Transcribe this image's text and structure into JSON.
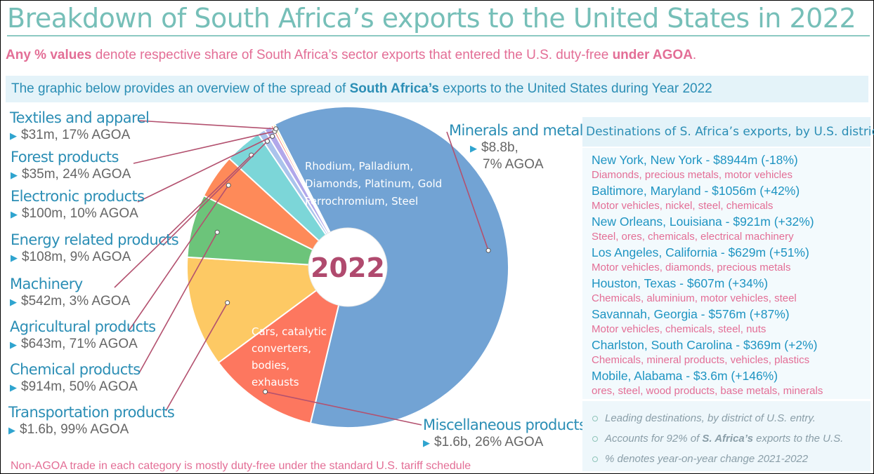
{
  "title": "Breakdown of South Africa’s exports to the United States in 2022",
  "subtitle": {
    "prefix_bold": "Any % values",
    "middle": " denote respective share of South Africa’s sector exports that entered the U.S. duty-free ",
    "suffix_bold": "under AGOA",
    "end": "."
  },
  "overview": {
    "prefix": "The graphic below provides an overview of the spread of ",
    "bold": "South Africa’s",
    "suffix": " exports to the United States during Year 2022"
  },
  "center_label": "2022",
  "slice_notes": {
    "minerals": [
      "Rhodium, Palladium,",
      "Diamonds, Platinum, Gold",
      "Ferrochromium, Steel"
    ],
    "transportation": [
      "Cars, catalytic",
      "converters,",
      "bodies,",
      "exhausts"
    ]
  },
  "footnote": "Non-AGOA trade in each category is mostly duty-free under the standard U.S. tariff schedule",
  "chart_data": {
    "type": "pie",
    "title": "Breakdown of South Africa’s exports to the United States in 2022",
    "center_text": "2022",
    "units": "US$ millions",
    "slices": [
      {
        "name": "Minerals and metals",
        "value": 8800,
        "value_label": "$8.8b,",
        "agoa_label": "7% AGOA",
        "agoa_pct": 7,
        "color": "#72a3d4"
      },
      {
        "name": "Miscellaneous products",
        "value": 1600,
        "value_label": "$1.6b, 26% AGOA",
        "agoa_pct": 26,
        "color": "#fd775f"
      },
      {
        "name": "Transportation products",
        "value": 1600,
        "value_label": "$1.6b, 99% AGOA",
        "agoa_pct": 99,
        "color": "#fdc964"
      },
      {
        "name": "Chemical products",
        "value": 914,
        "value_label": "$914m, 50% AGOA",
        "agoa_pct": 50,
        "color": "#6cc47a"
      },
      {
        "name": "Agricultural products",
        "value": 643,
        "value_label": "$643m,  71% AGOA",
        "agoa_pct": 71,
        "color": "#fe8a59"
      },
      {
        "name": "Machinery",
        "value": 542,
        "value_label": "$542m, 3% AGOA",
        "agoa_pct": 3,
        "color": "#7cd6d8"
      },
      {
        "name": "Energy related products",
        "value": 108,
        "value_label": "$108m, 9% AGOA",
        "agoa_pct": 9,
        "color": "#aac3ec"
      },
      {
        "name": "Electronic products",
        "value": 100,
        "value_label": "$100m, 10% AGOA",
        "agoa_pct": 10,
        "color": "#b1a7ea"
      },
      {
        "name": "Forest products",
        "value": 35,
        "value_label": "$35m, 24% AGOA",
        "agoa_pct": 24,
        "color": "#fb8a80"
      },
      {
        "name": "Textiles and apparel",
        "value": 31,
        "value_label": "$31m,  17% AGOA",
        "agoa_pct": 17,
        "color": "#f3eb98"
      }
    ]
  },
  "destinations": {
    "heading": "Destinations of S. Africa’s exports, by U.S. district",
    "items": [
      {
        "city": "New York, New York  -  $8944m  (-18%)",
        "products": "Diamonds, precious metals, motor vehicles"
      },
      {
        "city": "Baltimore, Maryland  -  $1056m  (+42%)",
        "products": "Motor vehicles, nickel, steel, chemicals"
      },
      {
        "city": "New Orleans, Louisiana -  $921m  (+32%)",
        "products": "Steel, ores, chemicals, electrical machinery"
      },
      {
        "city": "Los Angeles, California -  $629m  (+51%)",
        "products": "Motor vehicles, diamonds, precious metals"
      },
      {
        "city": "Houston, Texas -  $607m  (+34%)",
        "products": "Chemicals, aluminium, motor vehicles, steel"
      },
      {
        "city": "Savannah, Georgia -  $576m  (+87%)",
        "products": "Motor vehicles, chemicals, steel, nuts"
      },
      {
        "city": "Charlston, South Carolina  - $369m  (+2%)",
        "products": "Chemicals, mineral products, vehicles, plastics"
      },
      {
        "city": "Mobile, Alabama  - $3.6m  (+146%)",
        "products": "ores, steel, wood products, base metals, minerals"
      }
    ],
    "notes": [
      {
        "text": "Leading destinations, by district of U.S. entry."
      },
      {
        "pre": "Accounts for 92% of ",
        "bold": "S. Africa’s",
        "post": " exports to the U.S."
      },
      {
        "text": "% denotes year-on-year change 2021-2022"
      }
    ]
  }
}
